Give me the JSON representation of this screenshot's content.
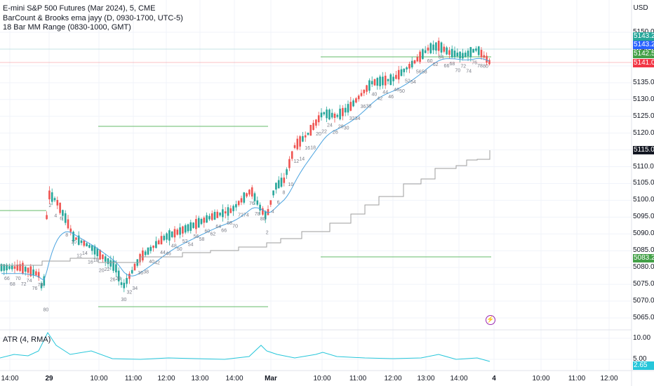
{
  "legend": {
    "main": "E-mini S&P 500 Futures (Mar 2024), 5, CME",
    "ema": "BarCount & Brooks ema jayy (D, 0930-1700, UTC-5)",
    "range": "18 Bar MM Range (0830-1000, GMT)",
    "atr": "ATR (4, RMA)"
  },
  "currency": "USD",
  "price_axis": [
    "5150.00",
    "5145.00",
    "5140.00",
    "5135.00",
    "5130.00",
    "5125.00",
    "5120.00",
    "5115.00",
    "5110.00",
    "5105.00",
    "5100.00",
    "5095.00",
    "5090.00",
    "5085.00",
    "5080.00",
    "5075.00",
    "5070.00",
    "5065.00"
  ],
  "price_badges": [
    {
      "id": "high",
      "text": "5143.25",
      "color": "#26a69a"
    },
    {
      "id": "ema",
      "text": "5143.25",
      "color": "#2962ff"
    },
    {
      "id": "mid",
      "text": "5142.50",
      "color": "#43a047"
    },
    {
      "id": "last",
      "text": "5141.00",
      "color": "#f23645"
    },
    {
      "id": "gray",
      "text": "5115.07",
      "color": "#131722"
    },
    {
      "id": "low",
      "text": "5083.25",
      "color": "#43a047"
    }
  ],
  "atr_axis": [
    "10.00",
    "5.00"
  ],
  "atr_badge": {
    "text": "2.65",
    "color": "#26c6da"
  },
  "time_axis": [
    {
      "t": "14:00",
      "bold": false
    },
    {
      "t": "29",
      "bold": true
    },
    {
      "t": "10:00",
      "bold": false
    },
    {
      "t": "11:00",
      "bold": false
    },
    {
      "t": "12:00",
      "bold": false
    },
    {
      "t": "13:00",
      "bold": false
    },
    {
      "t": "14:00",
      "bold": false
    },
    {
      "t": "Mar",
      "bold": true
    },
    {
      "t": "10:00",
      "bold": false
    },
    {
      "t": "11:00",
      "bold": false
    },
    {
      "t": "12:00",
      "bold": false
    },
    {
      "t": "13:00",
      "bold": false
    },
    {
      "t": "14:00",
      "bold": false
    },
    {
      "t": "4",
      "bold": true
    },
    {
      "t": "10:00",
      "bold": false
    },
    {
      "t": "11:00",
      "bold": false
    },
    {
      "t": "12:00",
      "bold": false
    }
  ],
  "bar_counts": [
    "66",
    "68",
    "70",
    "72",
    "74",
    "76",
    "78",
    "80",
    "2",
    "4",
    "6",
    "8",
    "10",
    "12",
    "14",
    "16",
    "18",
    "20",
    "22",
    "26",
    "28",
    "30",
    "32",
    "34",
    "36",
    "38",
    "40",
    "42",
    "44",
    "46",
    "48",
    "50",
    "52",
    "54",
    "56",
    "58",
    "60",
    "62",
    "64",
    "66",
    "68",
    "70",
    "72",
    "74",
    "76",
    "78",
    "80",
    "2",
    "4",
    "6",
    "8",
    "10",
    "12",
    "14",
    "16",
    "18",
    "20",
    "22",
    "24",
    "26",
    "28",
    "30",
    "32",
    "34",
    "36",
    "38",
    "40",
    "42",
    "44",
    "46",
    "48",
    "50",
    "52",
    "54",
    "56",
    "58",
    "60",
    "62",
    "64",
    "66",
    "68",
    "70",
    "72",
    "74",
    "76",
    "78",
    "80"
  ],
  "colors": {
    "up": "#26a69a",
    "down": "#ef5350",
    "ema": "#4aa3df",
    "gray": "#9e9e9e",
    "range": "#66bb6a",
    "atr": "#26c6da",
    "grid": "#f0f3fa"
  },
  "icons": {
    "alert": "lightning-bolt-icon"
  }
}
